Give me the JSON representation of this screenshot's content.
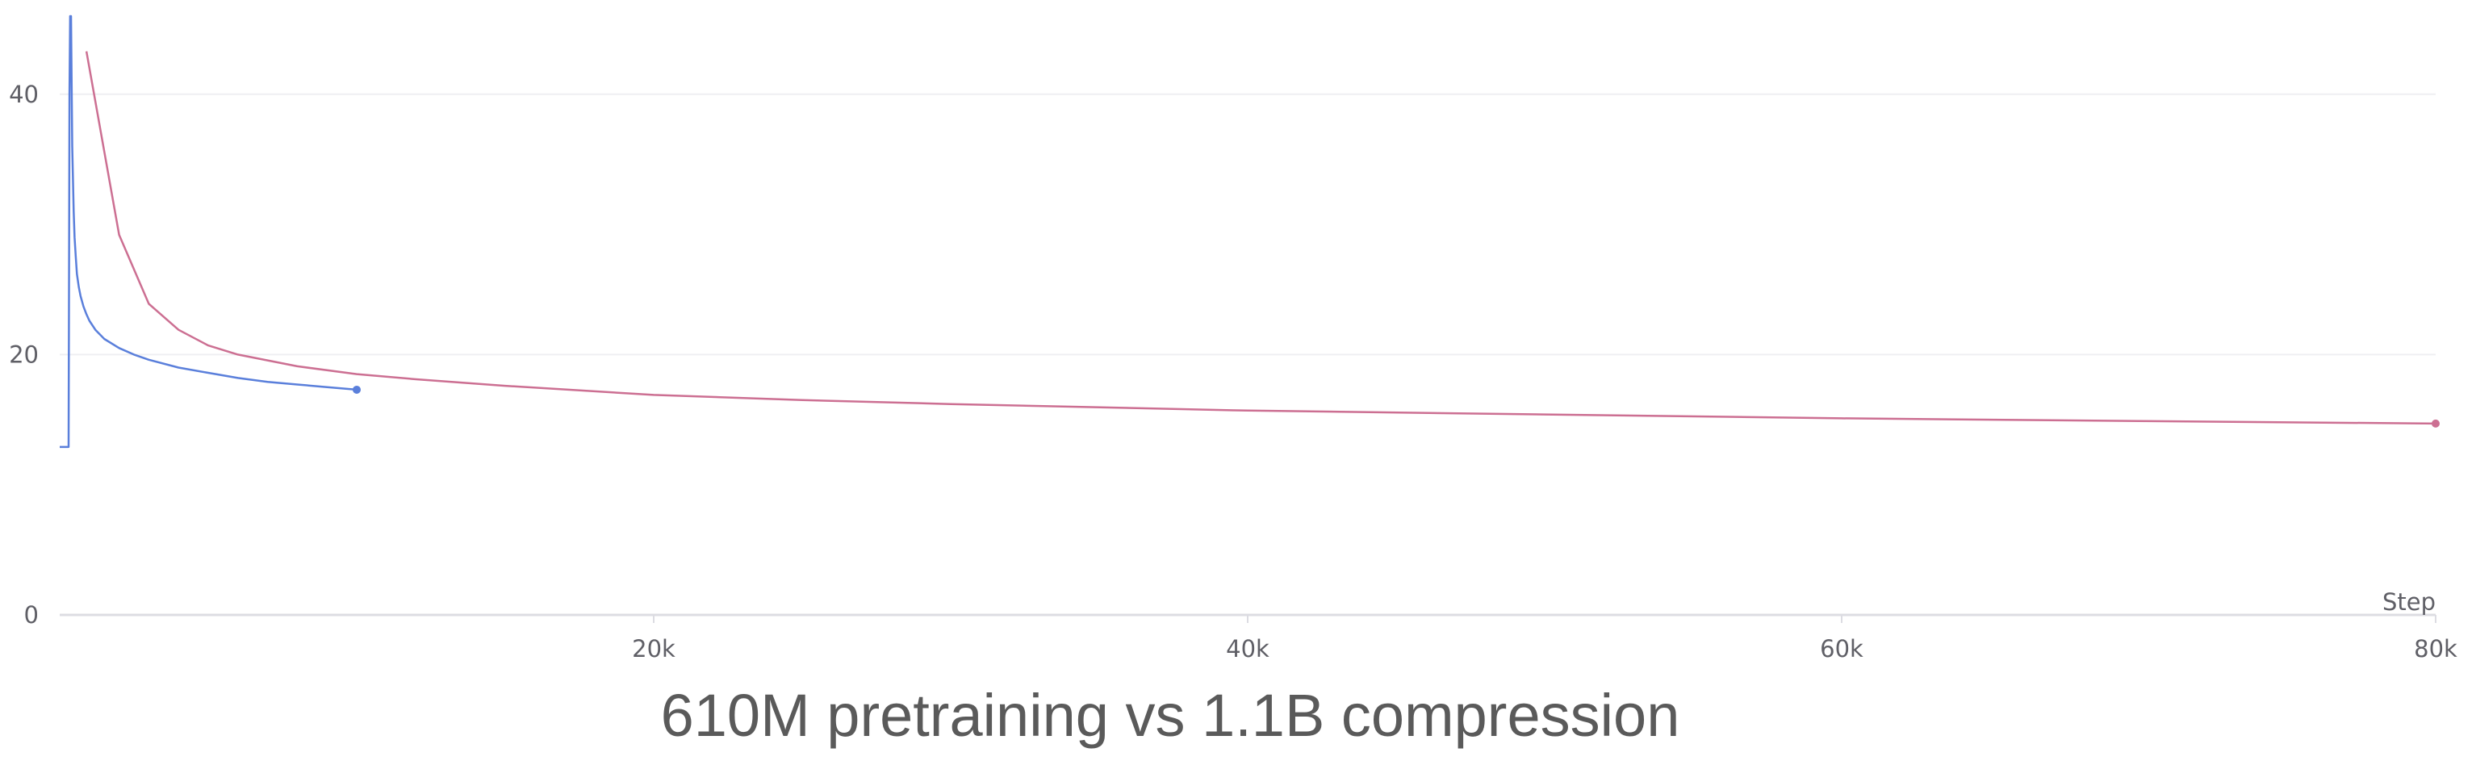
{
  "chart_data": {
    "type": "line",
    "title": "610M pretraining vs 1.1B compression",
    "xlabel": "Step",
    "ylabel": "",
    "xlim": [
      0,
      80000
    ],
    "ylim": [
      0,
      46
    ],
    "x_ticks": [
      {
        "value": 20000,
        "label": "20k"
      },
      {
        "value": 40000,
        "label": "40k"
      },
      {
        "value": 60000,
        "label": "60k"
      },
      {
        "value": 80000,
        "label": "80k"
      }
    ],
    "y_ticks": [
      {
        "value": 0,
        "label": "0"
      },
      {
        "value": 20,
        "label": "20"
      },
      {
        "value": 40,
        "label": "40"
      }
    ],
    "grid": true,
    "series": [
      {
        "color": "#5a7fdb",
        "endpoint_marker": true,
        "x": [
          0,
          300,
          310,
          330,
          350,
          380,
          420,
          470,
          500,
          540,
          580,
          640,
          700,
          800,
          900,
          1000,
          1200,
          1500,
          2000,
          2500,
          3000,
          4000,
          5000,
          6000,
          7000,
          8000,
          9000,
          10000
        ],
        "y": [
          12.9,
          12.9,
          22,
          40,
          46,
          46,
          36,
          31,
          29,
          27.5,
          26.2,
          25.2,
          24.5,
          23.7,
          23.1,
          22.6,
          21.9,
          21.2,
          20.5,
          20,
          19.6,
          19,
          18.6,
          18.2,
          17.9,
          17.7,
          17.5,
          17.3
        ]
      },
      {
        "color": "#cc6f92",
        "endpoint_marker": true,
        "x": [
          900,
          2000,
          3000,
          4000,
          5000,
          6000,
          8000,
          10000,
          12000,
          15000,
          20000,
          25000,
          30000,
          40000,
          50000,
          60000,
          70000,
          80000
        ],
        "y": [
          43.3,
          29.2,
          23.9,
          21.9,
          20.7,
          20,
          19.1,
          18.5,
          18.1,
          17.6,
          16.9,
          16.5,
          16.2,
          15.7,
          15.4,
          15.1,
          14.9,
          14.7
        ]
      }
    ]
  }
}
